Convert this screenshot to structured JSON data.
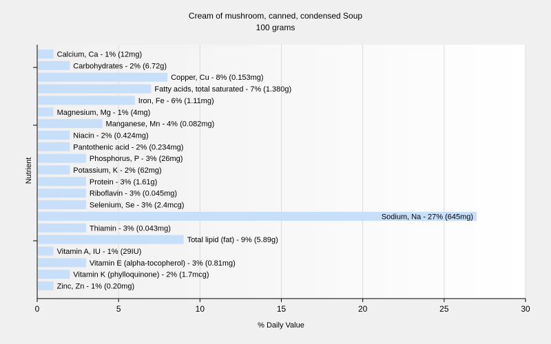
{
  "chart_data": {
    "type": "bar",
    "orientation": "horizontal",
    "title": "Cream of mushroom, canned, condensed Soup",
    "subtitle": "100 grams",
    "xlabel": "% Daily Value",
    "ylabel": "Nutrient",
    "xlim": [
      0,
      30
    ],
    "xticks": [
      0,
      5,
      10,
      15,
      20,
      25,
      30
    ],
    "grid": "vertical",
    "bar_color": "#c8dffa",
    "categories": [
      "Calcium, Ca",
      "Carbohydrates",
      "Copper, Cu",
      "Fatty acids, total saturated",
      "Iron, Fe",
      "Magnesium, Mg",
      "Manganese, Mn",
      "Niacin",
      "Pantothenic acid",
      "Phosphorus, P",
      "Potassium, K",
      "Protein",
      "Riboflavin",
      "Selenium, Se",
      "Sodium, Na",
      "Thiamin",
      "Total lipid (fat)",
      "Vitamin A, IU",
      "Vitamin E (alpha-tocopherol)",
      "Vitamin K (phylloquinone)",
      "Zinc, Zn"
    ],
    "values": [
      1,
      2,
      8,
      7,
      6,
      1,
      4,
      2,
      2,
      3,
      2,
      3,
      3,
      3,
      27,
      3,
      9,
      1,
      3,
      2,
      1
    ],
    "labels": [
      "Calcium, Ca - 1% (12mg)",
      "Carbohydrates - 2% (6.72g)",
      "Copper, Cu - 8% (0.153mg)",
      "Fatty acids, total saturated - 7% (1.380g)",
      "Iron, Fe - 6% (1.11mg)",
      "Magnesium, Mg - 1% (4mg)",
      "Manganese, Mn - 4% (0.082mg)",
      "Niacin - 2% (0.424mg)",
      "Pantothenic acid - 2% (0.234mg)",
      "Phosphorus, P - 3% (26mg)",
      "Potassium, K - 2% (62mg)",
      "Protein - 3% (1.61g)",
      "Riboflavin - 3% (0.045mg)",
      "Selenium, Se - 3% (2.4mcg)",
      "Sodium, Na - 27% (645mg)",
      "Thiamin - 3% (0.043mg)",
      "Total lipid (fat) - 9% (5.89g)",
      "Vitamin A, IU - 1% (29IU)",
      "Vitamin E (alpha-tocopherol) - 3% (0.81mg)",
      "Vitamin K (phylloquinone) - 2% (1.7mcg)",
      "Zinc, Zn - 1% (0.20mg)"
    ]
  }
}
